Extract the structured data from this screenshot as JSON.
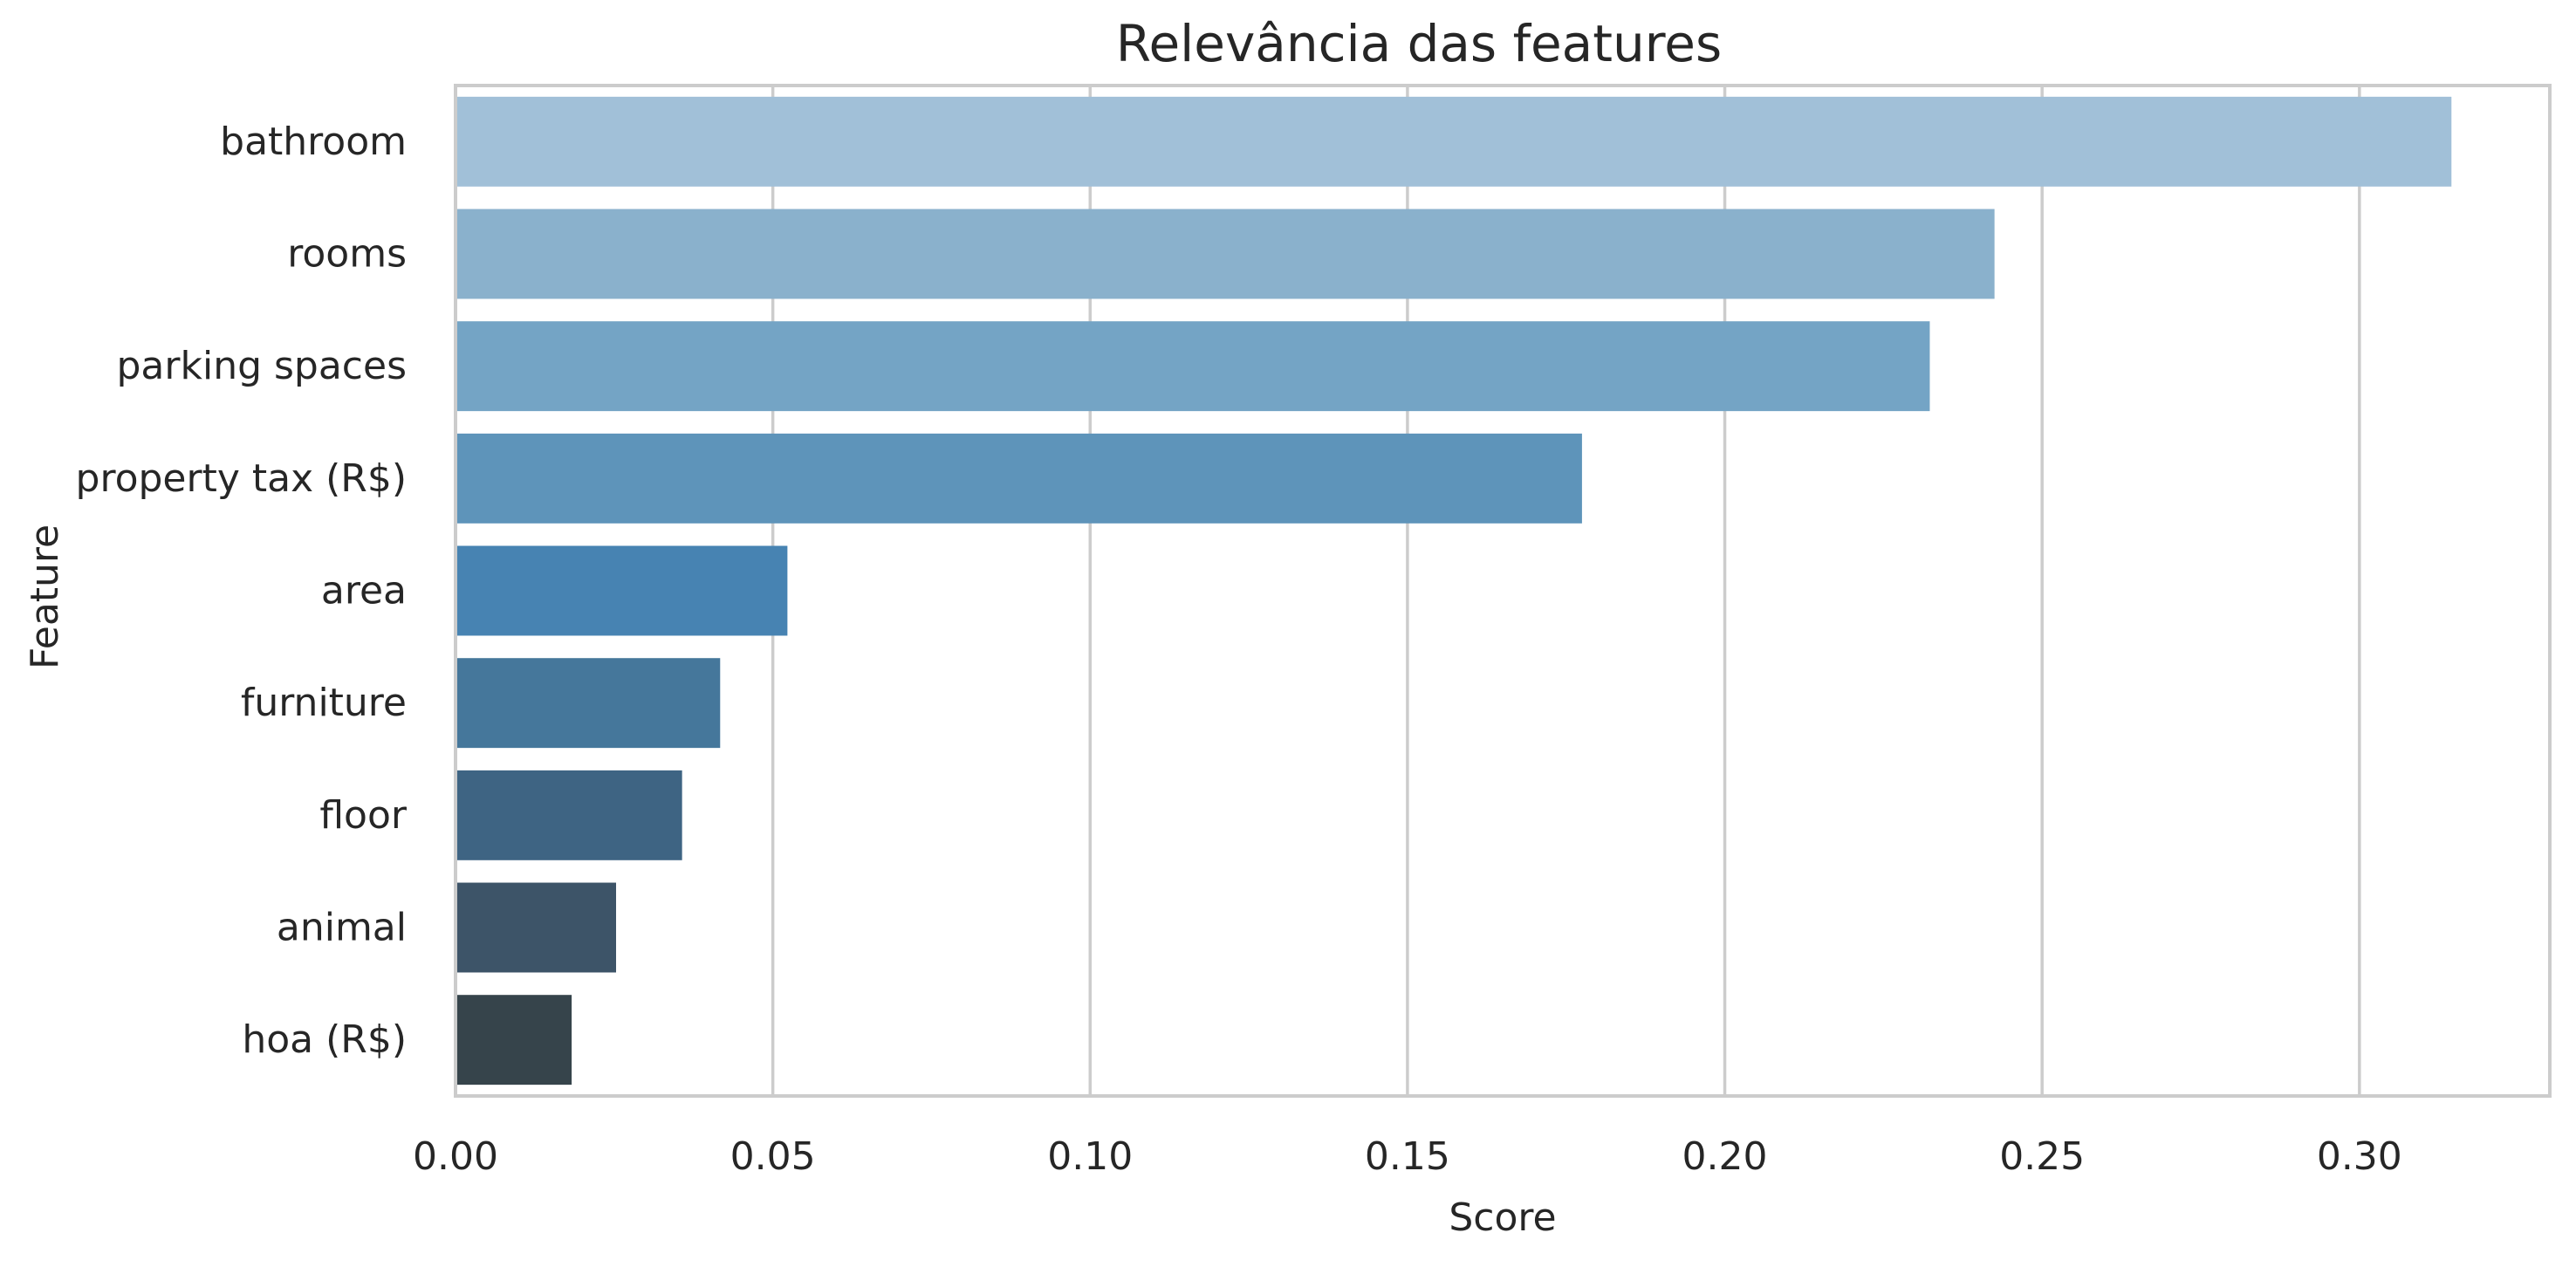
{
  "chart_data": {
    "type": "bar",
    "orientation": "horizontal",
    "title": "Relevância das features",
    "xlabel": "Score",
    "ylabel": "Feature",
    "categories": [
      "bathroom",
      "rooms",
      "parking spaces",
      "property tax (R$)",
      "area",
      "furniture",
      "floor",
      "animal",
      "hoa (R$)"
    ],
    "values": [
      0.3145,
      0.2425,
      0.2323,
      0.1775,
      0.0523,
      0.0417,
      0.0357,
      0.0253,
      0.0183
    ],
    "xlim": [
      0,
      0.33
    ],
    "xticks": [
      "0.00",
      "0.05",
      "0.10",
      "0.15",
      "0.20",
      "0.25",
      "0.30"
    ],
    "xtick_values": [
      0,
      0.05,
      0.1,
      0.15,
      0.2,
      0.25,
      0.3
    ],
    "grid": "vertical",
    "legend": "none",
    "colors": [
      "#a1c0d8",
      "#8ab1cc",
      "#74a4c5",
      "#5e94ba",
      "#4783b2",
      "#45779b",
      "#3e6483",
      "#3d5468",
      "#36444b"
    ],
    "grid_color": "#cccccc",
    "spine_color": "#cccccc"
  }
}
